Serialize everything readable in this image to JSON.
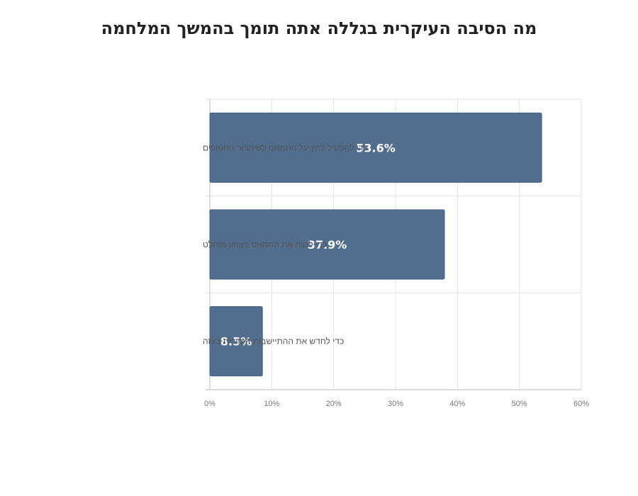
{
  "chart_data": {
    "type": "bar",
    "orientation": "horizontal",
    "title": "מה הסיבה העיקרית בגללה אתה תומך בהמשך המלחמה",
    "categories": [
      "כדי להפעיל לחץ על החמאס לשיחרור החטופים",
      "כדי לנצח את החמאס ניצחון מוחלט",
      "כדי לחדש את ההתיישבות היהודית בעזה"
    ],
    "values": [
      53.6,
      37.9,
      8.5
    ],
    "data_labels": [
      "53.6%",
      "37.9%",
      "8.5%"
    ],
    "xlim": [
      0,
      60
    ],
    "x_ticks": [
      0,
      10,
      20,
      30,
      40,
      50,
      60
    ],
    "x_tick_labels": [
      "0%",
      "10%",
      "20%",
      "30%",
      "40%",
      "50%",
      "60%"
    ],
    "xlabel": "",
    "ylabel": "",
    "grid": true,
    "legend": "none",
    "colors": {
      "bar": "#516e8f",
      "grid": "#e3e3e3",
      "axis": "#bbbbbb"
    }
  }
}
